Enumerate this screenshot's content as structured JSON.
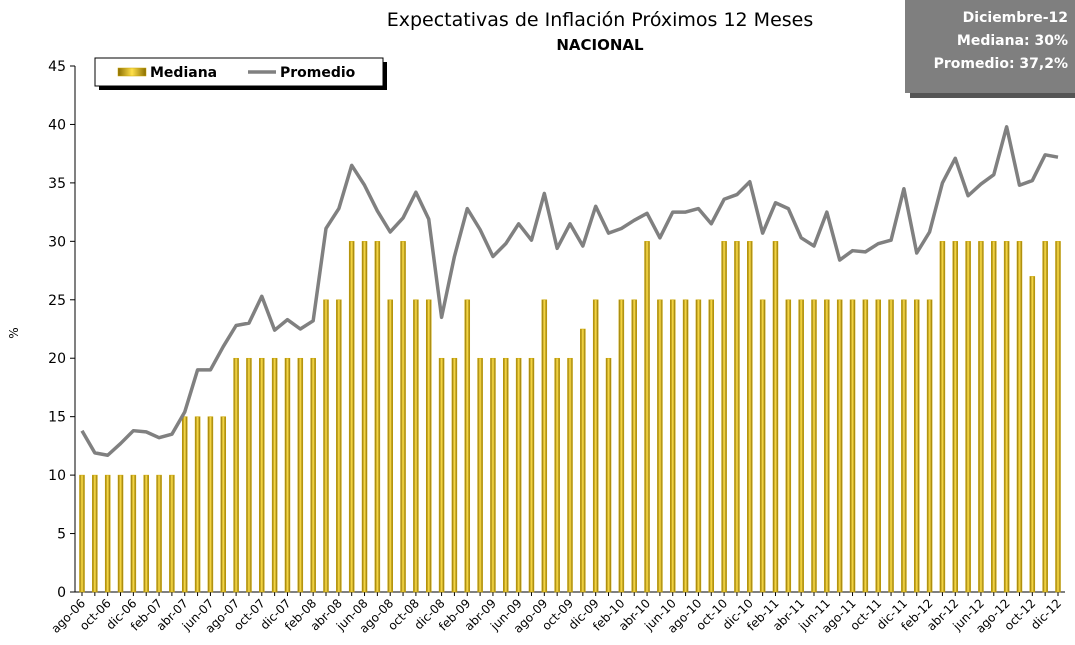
{
  "chart_data": {
    "type": "bar_line",
    "title": "Expectativas de Inflación Próximos 12 Meses",
    "subtitle": "NACIONAL",
    "y_label": "%",
    "annotation": [
      "Diciembre-12",
      "Mediana: 30%",
      "Promedio: 37,2%"
    ],
    "categories": [
      "ago-06",
      null,
      "oct-06",
      null,
      "dic-06",
      null,
      "feb-07",
      null,
      "abr-07",
      null,
      "jun-07",
      null,
      "ago-07",
      null,
      "oct-07",
      null,
      "dic-07",
      null,
      "feb-08",
      null,
      "abr-08",
      null,
      "jun-08",
      null,
      "ago-08",
      null,
      "oct-08",
      null,
      "dic-08",
      null,
      "feb-09",
      null,
      "abr-09",
      null,
      "jun-09",
      null,
      "ago-09",
      null,
      "oct-09",
      null,
      "dic-09",
      null,
      "feb-10",
      null,
      "abr-10",
      null,
      "jun-10",
      null,
      "ago-10",
      null,
      "oct-10",
      null,
      "dic-10",
      null,
      "feb-11",
      null,
      "abr-11",
      null,
      "jun-11",
      null,
      "ago-11",
      null,
      "oct-11",
      null,
      "dic-11",
      null,
      "feb-12",
      null,
      "abr-12",
      null,
      "jun-12",
      null,
      "ago-12",
      null,
      "oct-12",
      null,
      "dic-12"
    ],
    "series": [
      {
        "name": "Mediana",
        "kind": "bar",
        "color": "#c9a400",
        "values": [
          10,
          10,
          10,
          10,
          10,
          10,
          10,
          10,
          15,
          15,
          15,
          15,
          20,
          20,
          20,
          20,
          20,
          20,
          20,
          25,
          25,
          30,
          30,
          30,
          25,
          30,
          25,
          25,
          20,
          20,
          25,
          20,
          20,
          20,
          20,
          20,
          25,
          20,
          20,
          22.5,
          25,
          20,
          25,
          25,
          30,
          25,
          25,
          25,
          25,
          25,
          30,
          30,
          30,
          25,
          30,
          25,
          25,
          25,
          25,
          25,
          25,
          25,
          25,
          25,
          25,
          25,
          25,
          30,
          30,
          30,
          30,
          30,
          30,
          30,
          27,
          30,
          30
        ]
      },
      {
        "name": "Promedio",
        "kind": "line",
        "color": "#808080",
        "values": [
          13.8,
          11.9,
          11.7,
          12.7,
          13.8,
          13.7,
          13.2,
          13.5,
          15.4,
          19,
          19,
          21,
          22.8,
          23,
          25.3,
          22.4,
          23.3,
          22.5,
          23.2,
          31.1,
          32.8,
          36.5,
          34.8,
          32.6,
          30.8,
          32,
          34.2,
          31.9,
          23.5,
          28.7,
          32.8,
          31,
          28.7,
          29.8,
          31.5,
          30.1,
          34.1,
          29.4,
          31.5,
          29.6,
          33,
          30.7,
          31.1,
          31.8,
          32.4,
          30.3,
          32.5,
          32.5,
          32.8,
          31.5,
          33.6,
          34,
          35.1,
          30.7,
          33.3,
          32.8,
          30.3,
          29.6,
          32.5,
          28.4,
          29.2,
          29.1,
          29.8,
          30.1,
          34.5,
          29,
          30.8,
          35,
          37.1,
          33.9,
          34.9,
          35.7,
          39.8,
          34.8,
          35.2,
          37.4,
          37.2
        ]
      }
    ],
    "ylim": [
      0,
      45
    ],
    "yticks": [
      0,
      5,
      10,
      15,
      20,
      25,
      30,
      35,
      40,
      45
    ],
    "grid": false
  }
}
